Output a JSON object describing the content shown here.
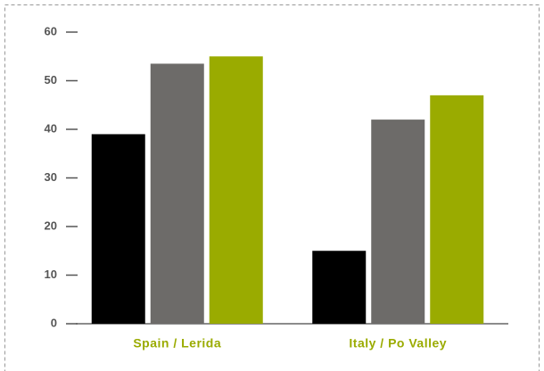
{
  "chart_data": {
    "type": "bar",
    "categories": [
      "Spain / Lerida",
      "Italy / Po Valley"
    ],
    "series": [
      {
        "color": "#000000",
        "values": [
          39,
          15
        ]
      },
      {
        "color": "#6d6b69",
        "values": [
          53.5,
          42
        ]
      },
      {
        "color": "#9aab00",
        "values": [
          55,
          47
        ]
      }
    ],
    "ylim": [
      0,
      60
    ],
    "yticks": [
      0,
      10,
      20,
      30,
      40,
      50,
      60
    ],
    "grid": false
  }
}
